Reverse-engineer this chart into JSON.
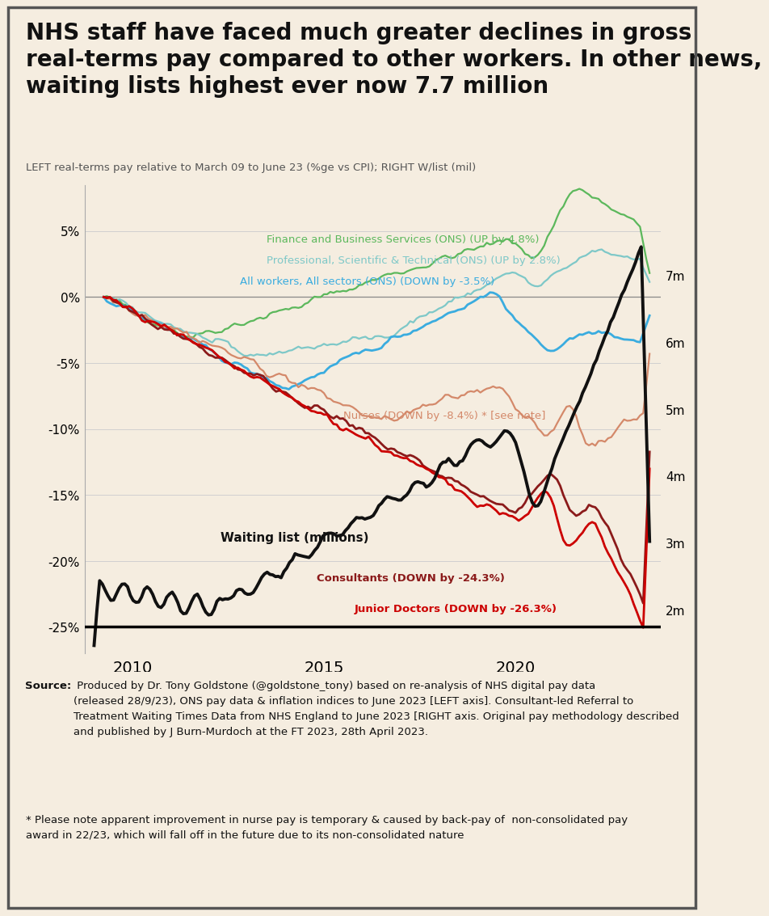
{
  "title": "NHS staff have faced much greater declines in gross\nreal-terms pay compared to other workers. In other news,\nwaiting lists highest ever now 7.7 million",
  "subtitle": "LEFT real-terms pay relative to March 09 to June 23 (%ge vs CPI); RIGHT W/list (mil)",
  "source_bold": "Source:",
  "source_rest": " Produced by Dr. Tony Goldstone (@goldstone_tony) based on re-analysis of NHS digital pay data\n(released 28/9/23), ONS pay data & inflation indices to June 2023 [LEFT axis]. Consultant-led Referral to\nTreatment Waiting Times Data from NHS England to June 2023 [RIGHT axis. Original pay methodology described\nand published by J Burn-Murdoch at the FT 2023, 28th April 2023.",
  "footnote": "* Please note apparent improvement in nurse pay is temporary & caused by back-pay of  non-consolidated pay\naward in 22/23, which will fall off in the future due to its non-consolidated nature",
  "bg_color": "#f5ede0",
  "finance_color": "#5cb85c",
  "professional_color": "#7ec8c8",
  "all_workers_color": "#3aacdf",
  "nurses_color": "#d4896a",
  "consultants_color": "#8b1a1a",
  "junior_doctors_color": "#cc0000",
  "waiting_list_color": "#111111",
  "xlim": [
    2008.75,
    2023.8
  ],
  "ylim_left": [
    -27.0,
    8.5
  ],
  "ylim_right": [
    1.35,
    8.35
  ],
  "yticks_left": [
    -25,
    -20,
    -15,
    -10,
    -5,
    0,
    5
  ],
  "yticks_right": [
    2,
    3,
    4,
    5,
    6,
    7
  ],
  "xticks": [
    2010,
    2015,
    2020
  ],
  "finance_label": "Finance and Business Services (ONS) (UP by 4.8%)",
  "professional_label": "Professional, Scientific & Technical (ONS) (UP by 2.8%)",
  "all_workers_label": "All workers, All sectors (ONS) (DOWN by -3.5%)",
  "nurses_label": "Nurses (DOWN by -8.4%) * [see note]",
  "consultants_label": "Consultants (DOWN by -24.3%)",
  "junior_doctors_label": "Junior Doctors (DOWN by -26.3%)",
  "waiting_list_label": "Waiting list (millions)"
}
